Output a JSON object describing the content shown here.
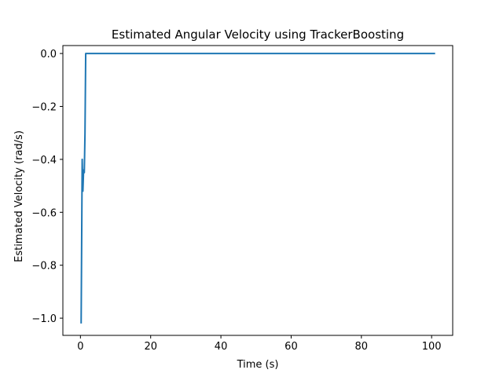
{
  "chart_data": {
    "type": "line",
    "title": "Estimated Angular Velocity using TrackerBoosting",
    "xlabel": "Time (s)",
    "ylabel": "Estimated Velocity (rad/s)",
    "xlim": [
      -5,
      106
    ],
    "ylim": [
      -1.065,
      0.03
    ],
    "x_ticks": [
      0,
      20,
      40,
      60,
      80,
      100
    ],
    "y_ticks": [
      0.0,
      -0.2,
      -0.4,
      -0.6,
      -0.8,
      -1.0
    ],
    "x_tick_labels": [
      "0",
      "20",
      "40",
      "60",
      "80",
      "100"
    ],
    "y_tick_labels": [
      "0.0",
      "−0.2",
      "−0.4",
      "−0.6",
      "−0.8",
      "−1.0"
    ],
    "grid": false,
    "series": [
      {
        "color": "#1f77b4",
        "x": [
          0.2,
          0.5,
          0.7,
          0.9,
          1.1,
          1.3,
          1.5,
          2.0,
          10,
          20,
          30,
          40,
          50,
          60,
          70,
          80,
          90,
          100,
          101
        ],
        "y": [
          -1.02,
          -0.4,
          -0.52,
          -0.44,
          -0.45,
          -0.3,
          0.0,
          0.0,
          0.0,
          0.0,
          0.0,
          0.0,
          0.0,
          0.0,
          0.0,
          0.0,
          0.0,
          0.0,
          0.0
        ]
      }
    ]
  }
}
